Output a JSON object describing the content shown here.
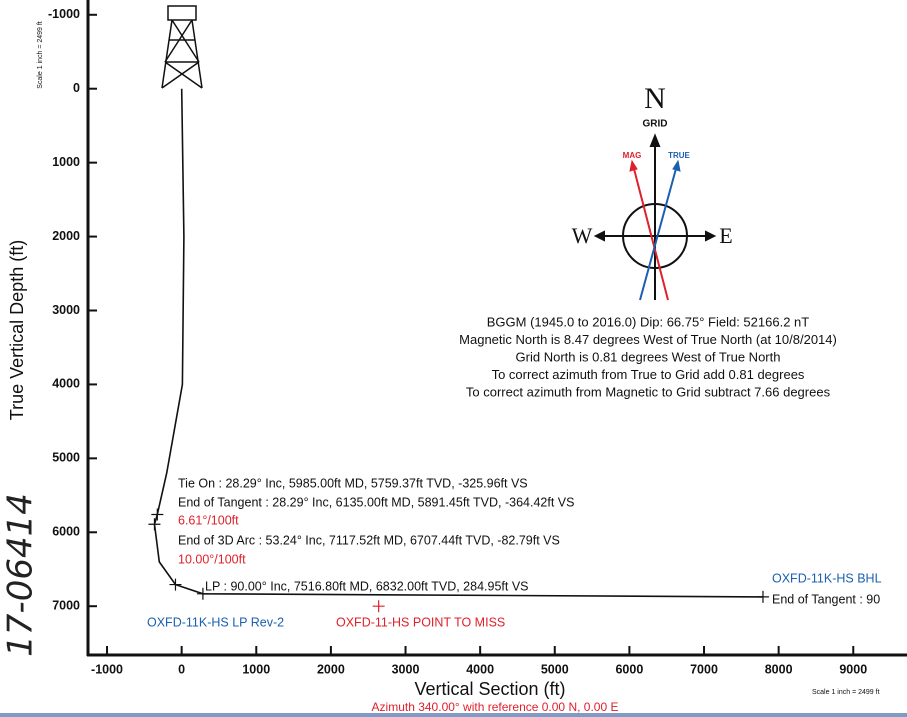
{
  "chart_data": {
    "type": "line",
    "x_label": "Vertical Section (ft)",
    "y_label": "True Vertical Depth (ft)",
    "subtitle": "Azimuth 340.00° with reference 0.00 N, 0.00 E",
    "scale_note": "Scale 1 inch = 2499 ft",
    "handwriting": "17-06414",
    "xlim": [
      -1255,
      9720
    ],
    "ylim": [
      -1200,
      7660
    ],
    "y_inverted": true,
    "xticks": [
      -1000,
      0,
      1000,
      2000,
      3000,
      4000,
      5000,
      6000,
      7000,
      8000,
      9000
    ],
    "yticks": [
      -1000,
      0,
      1000,
      2000,
      3000,
      4000,
      5000,
      6000,
      7000
    ],
    "path": {
      "color": "#111111",
      "x": [
        0,
        30,
        10,
        -200,
        -325.96,
        -364.42,
        -300,
        -82.79,
        284.95,
        7790
      ],
      "y": [
        0,
        2000,
        4000,
        5200,
        5759.37,
        5891.45,
        6400,
        6707.44,
        6832,
        6874
      ]
    },
    "markers": [
      {
        "x": -325.96,
        "y": 5759.37,
        "color": "#111111"
      },
      {
        "x": -364.42,
        "y": 5891.45,
        "color": "#111111"
      },
      {
        "x": -82.79,
        "y": 6707.44,
        "color": "#111111"
      },
      {
        "x": 284.95,
        "y": 6832,
        "color": "#111111"
      },
      {
        "x": 7790,
        "y": 6874,
        "color": "#111111"
      },
      {
        "x": 2640,
        "y": 7000,
        "color": "#e0202a"
      }
    ],
    "annotations": [
      {
        "text": "Tie On : 28.29° Inc, 5985.00ft MD, 5759.37ft TVD, -325.96ft VS",
        "color": "#111111"
      },
      {
        "text": "End of Tangent : 28.29° Inc, 6135.00ft MD, 5891.45ft TVD, -364.42ft VS",
        "color": "#111111"
      },
      {
        "text": "6.61°/100ft",
        "color": "#e0202a"
      },
      {
        "text": "End of 3D Arc : 53.24° Inc, 7117.52ft MD, 6707.44ft TVD, -82.79ft VS",
        "color": "#111111"
      },
      {
        "text": "10.00°/100ft",
        "color": "#e0202a"
      },
      {
        "text": "LP : 90.00° Inc, 7516.80ft MD, 6832.00ft TVD, 284.95ft VS",
        "color": "#111111"
      },
      {
        "text": "OXFD-11K-HS LP Rev-2",
        "color": "#1b5fb0"
      },
      {
        "text": "OXFD-11-HS POINT TO MISS",
        "color": "#e0202a"
      },
      {
        "text": "OXFD-11K-HS BHL",
        "color": "#1b5fb0"
      },
      {
        "text": "End of Tangent : 90",
        "color": "#111111"
      }
    ],
    "compass": {
      "north": "N",
      "grid": "GRID",
      "mag": "MAG",
      "true": "TRUE",
      "west": "W",
      "east": "E"
    },
    "info_lines": [
      "BGGM (1945.0 to 2016.0) Dip: 66.75°  Field: 52166.2 nT",
      "Magnetic North is 8.47 degrees West of True North (at 10/8/2014)",
      "Grid North is 0.81 degrees West of True North",
      "To correct azimuth from True to Grid add 0.81 degrees",
      "To correct azimuth from Magnetic to Grid subtract 7.66 degrees"
    ]
  }
}
